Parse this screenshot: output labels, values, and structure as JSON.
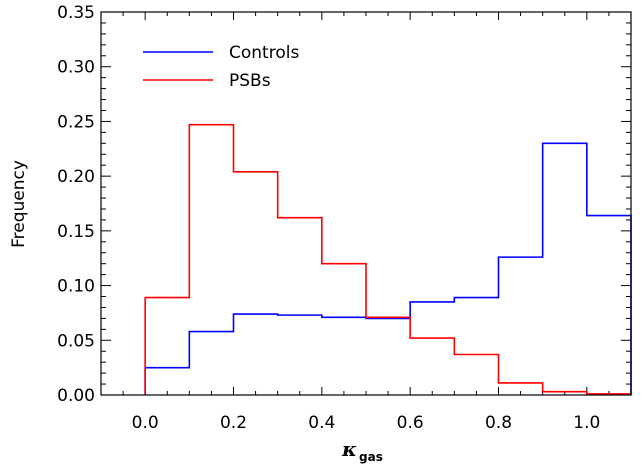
{
  "chart_data": {
    "type": "histogram-step",
    "xlabel": "κ",
    "xlabel_subscript": "gas",
    "ylabel": "Frequency",
    "xlim": [
      -0.1,
      1.1
    ],
    "ylim": [
      0.0,
      0.35
    ],
    "x_ticks": [
      "0.0",
      "0.2",
      "0.4",
      "0.6",
      "0.8",
      "1.0"
    ],
    "y_ticks": [
      "0.00",
      "0.05",
      "0.10",
      "0.15",
      "0.20",
      "0.25",
      "0.30",
      "0.35"
    ],
    "bin_edges": [
      0.0,
      0.1,
      0.2,
      0.3,
      0.4,
      0.5,
      0.6,
      0.7,
      0.8,
      0.9,
      1.0,
      1.1
    ],
    "series": [
      {
        "name": "Controls",
        "color": "#0000ff",
        "values": [
          0.025,
          0.058,
          0.074,
          0.073,
          0.071,
          0.07,
          0.085,
          0.089,
          0.126,
          0.23,
          0.164
        ]
      },
      {
        "name": "PSBs",
        "color": "#ff0000",
        "values": [
          0.089,
          0.247,
          0.204,
          0.162,
          0.12,
          0.071,
          0.052,
          0.037,
          0.011,
          0.003,
          0.001
        ]
      }
    ],
    "legend": "top-left",
    "grid": false
  }
}
